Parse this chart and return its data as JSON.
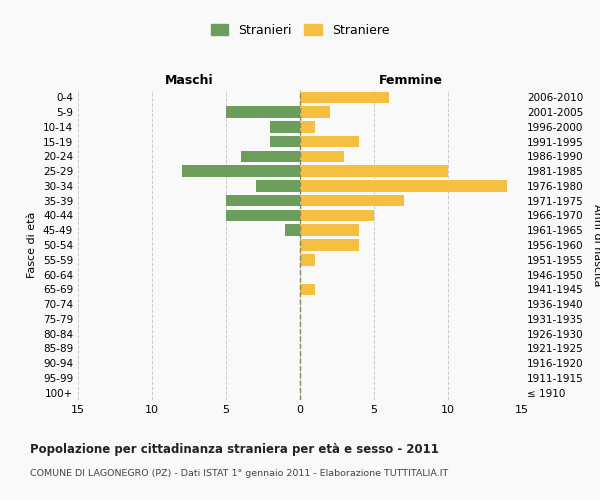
{
  "age_groups": [
    "100+",
    "95-99",
    "90-94",
    "85-89",
    "80-84",
    "75-79",
    "70-74",
    "65-69",
    "60-64",
    "55-59",
    "50-54",
    "45-49",
    "40-44",
    "35-39",
    "30-34",
    "25-29",
    "20-24",
    "15-19",
    "10-14",
    "5-9",
    "0-4"
  ],
  "birth_years": [
    "≤ 1910",
    "1911-1915",
    "1916-1920",
    "1921-1925",
    "1926-1930",
    "1931-1935",
    "1936-1940",
    "1941-1945",
    "1946-1950",
    "1951-1955",
    "1956-1960",
    "1961-1965",
    "1966-1970",
    "1971-1975",
    "1976-1980",
    "1981-1985",
    "1986-1990",
    "1991-1995",
    "1996-2000",
    "2001-2005",
    "2006-2010"
  ],
  "maschi": [
    0,
    0,
    0,
    0,
    0,
    0,
    0,
    0,
    0,
    0,
    0,
    1,
    5,
    5,
    3,
    8,
    4,
    2,
    2,
    5,
    0
  ],
  "femmine": [
    0,
    0,
    0,
    0,
    0,
    0,
    0,
    1,
    0,
    1,
    4,
    4,
    5,
    7,
    14,
    10,
    3,
    4,
    1,
    2,
    6
  ],
  "color_maschi": "#6a9e5a",
  "color_femmine": "#f5bf42",
  "title": "Popolazione per cittadinanza straniera per età e sesso - 2011",
  "subtitle": "COMUNE DI LAGONEGRO (PZ) - Dati ISTAT 1° gennaio 2011 - Elaborazione TUTTITALIA.IT",
  "xlabel_left": "Maschi",
  "xlabel_right": "Femmine",
  "ylabel_left": "Fasce di età",
  "ylabel_right": "Anni di nascita",
  "legend_maschi": "Stranieri",
  "legend_femmine": "Straniere",
  "xlim": 15,
  "background_color": "#f9f9f9",
  "grid_color": "#cccccc"
}
